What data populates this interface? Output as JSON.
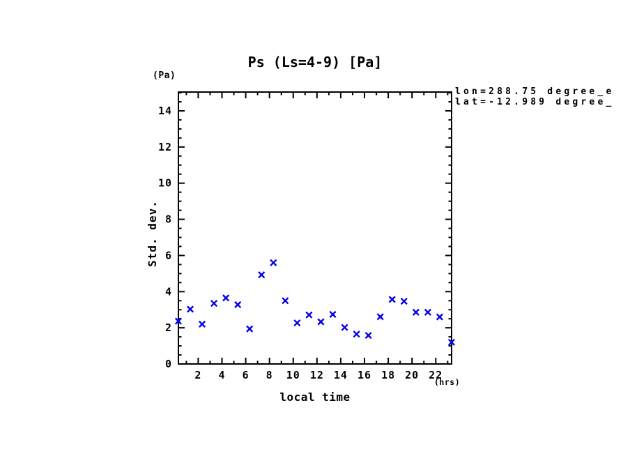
{
  "title": "Ps (Ls=4-9) [Pa]",
  "y_unit_label": "(Pa)",
  "x_unit_label": "(hrs)",
  "annotation": {
    "line1": "lon=288.75 degree_e",
    "line2": "lat=-12.989 degree_"
  },
  "colors": {
    "marker": "#0000EE",
    "axis": "#000000",
    "background": "#ffffff"
  },
  "chart_data": {
    "type": "scatter",
    "title": "Ps (Ls=4-9) [Pa]",
    "xlabel": "local time",
    "ylabel": "Std. dev.",
    "x_unit": "hrs",
    "y_unit": "Pa",
    "marker": "x",
    "marker_color": "#0000EE",
    "grid": false,
    "xlim": [
      0.333,
      23.333
    ],
    "ylim": [
      0,
      15.04
    ],
    "x_major_ticks": [
      2,
      4,
      6,
      8,
      10,
      12,
      14,
      16,
      18,
      20,
      22
    ],
    "x_minor_step": 1,
    "y_major_ticks": [
      0,
      2,
      4,
      6,
      8,
      10,
      12,
      14
    ],
    "y_minor_step": 0.5,
    "x": [
      0.33,
      1.33,
      2.33,
      3.33,
      4.33,
      5.33,
      6.33,
      7.33,
      8.33,
      9.33,
      10.33,
      11.33,
      12.33,
      13.33,
      14.33,
      15.33,
      16.33,
      17.33,
      18.33,
      19.33,
      20.33,
      21.33,
      22.33,
      23.33
    ],
    "y": [
      2.37,
      3.03,
      2.2,
      3.35,
      3.65,
      3.28,
      1.94,
      4.93,
      5.6,
      3.5,
      2.27,
      2.71,
      2.33,
      2.74,
      2.02,
      1.65,
      1.58,
      2.61,
      3.57,
      3.47,
      2.86,
      2.86,
      2.6,
      1.2
    ]
  }
}
